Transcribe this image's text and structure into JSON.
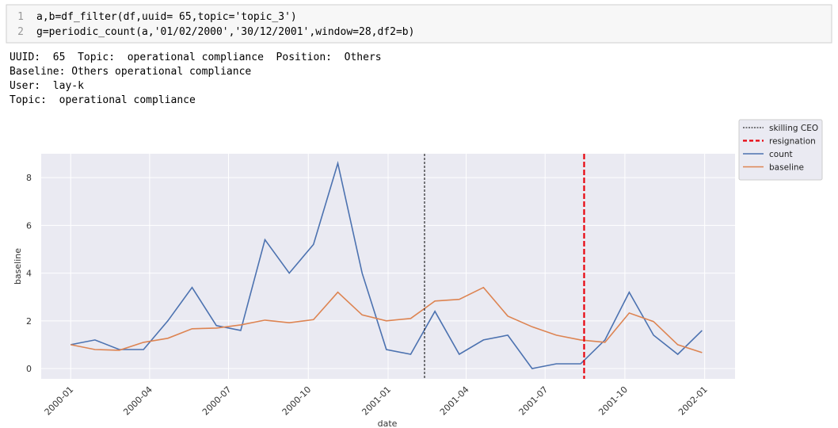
{
  "code": {
    "line_numbers": [
      "1",
      "2"
    ],
    "lines": [
      "a,b=df_filter(df,uuid= 65,topic='topic_3')",
      "g=periodic_count(a,'01/02/2000','30/12/2001',window=28,df2=b)"
    ]
  },
  "output": [
    "UUID:  65  Topic:  operational compliance  Position:  Others",
    "Baseline: Others operational compliance",
    "User:  lay-k",
    "Topic:  operational compliance"
  ],
  "chart_data": {
    "type": "line",
    "xlabel": "date",
    "ylabel": "baseline",
    "x": [
      "2000-01-01",
      "2000-01-29",
      "2000-02-26",
      "2000-03-25",
      "2000-04-22",
      "2000-05-20",
      "2000-06-17",
      "2000-07-15",
      "2000-08-12",
      "2000-09-09",
      "2000-10-07",
      "2000-11-04",
      "2000-12-02",
      "2000-12-30",
      "2001-01-27",
      "2001-02-24",
      "2001-03-24",
      "2001-04-21",
      "2001-05-19",
      "2001-06-16",
      "2001-07-14",
      "2001-08-11",
      "2001-09-08",
      "2001-10-06",
      "2001-11-03",
      "2001-12-01",
      "2001-12-29"
    ],
    "series": [
      {
        "name": "count",
        "color": "#4c72b0",
        "values": [
          1.0,
          1.2,
          0.8,
          0.8,
          2.0,
          3.4,
          1.8,
          1.6,
          5.4,
          4.0,
          5.2,
          8.6,
          4.0,
          0.8,
          0.6,
          2.4,
          0.6,
          1.2,
          1.4,
          0.0,
          0.2,
          0.2,
          1.2,
          3.2,
          1.4,
          0.6,
          1.6
        ]
      },
      {
        "name": "baseline",
        "color": "#dd8452",
        "values": [
          1.0,
          0.8,
          0.77,
          1.1,
          1.27,
          1.67,
          1.7,
          1.83,
          2.03,
          1.92,
          2.05,
          3.2,
          2.25,
          2.0,
          2.1,
          2.83,
          2.9,
          3.4,
          2.2,
          1.75,
          1.4,
          1.2,
          1.1,
          2.33,
          1.97,
          1.0,
          0.67
        ]
      }
    ],
    "vlines": [
      {
        "name": "skilling CEO",
        "x": "2001-02-12",
        "color": "#000000",
        "style": "dashed",
        "width": 1
      },
      {
        "name": "resignation",
        "x": "2001-08-15",
        "color": "#e8000b",
        "style": "dashed",
        "width": 2.2
      }
    ],
    "xlim": [
      "1999-11-28",
      "2002-02-05"
    ],
    "xticks": [
      {
        "value": "2000-01-01",
        "label": "2000-01"
      },
      {
        "value": "2000-04-01",
        "label": "2000-04"
      },
      {
        "value": "2000-07-01",
        "label": "2000-07"
      },
      {
        "value": "2000-10-01",
        "label": "2000-10"
      },
      {
        "value": "2001-01-01",
        "label": "2001-01"
      },
      {
        "value": "2001-04-01",
        "label": "2001-04"
      },
      {
        "value": "2001-07-01",
        "label": "2001-07"
      },
      {
        "value": "2001-10-01",
        "label": "2001-10"
      },
      {
        "value": "2002-01-01",
        "label": "2002-01"
      }
    ],
    "ylim": [
      -0.43,
      9.0
    ],
    "yticks": [
      0,
      2,
      4,
      6,
      8
    ],
    "grid": true,
    "legend": "upper right outside"
  }
}
